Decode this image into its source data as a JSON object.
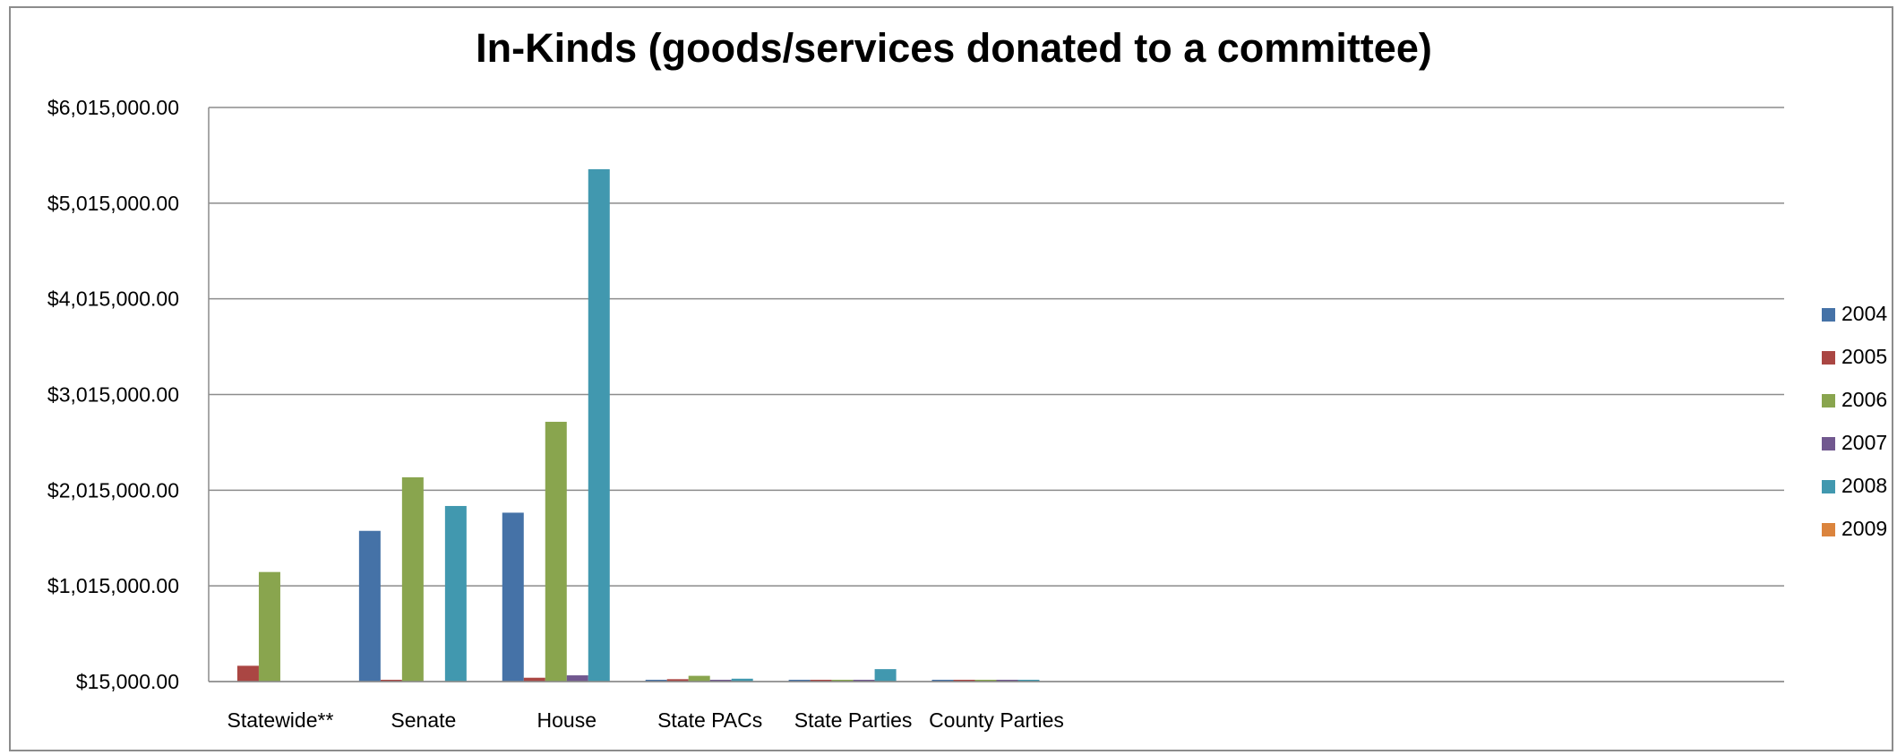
{
  "chart_data": {
    "type": "bar",
    "title": "In-Kinds (goods/services donated to a committee)",
    "xlabel": "",
    "ylabel": "",
    "ylim": [
      15000,
      6015000
    ],
    "yticks": [
      {
        "value": 15000,
        "label": "$15,000.00"
      },
      {
        "value": 1015000,
        "label": "$1,015,000.00"
      },
      {
        "value": 2015000,
        "label": "$2,015,000.00"
      },
      {
        "value": 3015000,
        "label": "$3,015,000.00"
      },
      {
        "value": 4015000,
        "label": "$4,015,000.00"
      },
      {
        "value": 5015000,
        "label": "$5,015,000.00"
      },
      {
        "value": 6015000,
        "label": "$6,015,000.00"
      }
    ],
    "categories": [
      "Statewide**",
      "Senate",
      "House",
      "State PACs",
      "State Parties",
      "County Parties",
      "",
      "",
      "",
      "",
      ""
    ],
    "grid": true,
    "legend_position": "right",
    "series": [
      {
        "name": "2004",
        "color": "#4572A7",
        "values": [
          0,
          1590000,
          1780000,
          5000,
          5000,
          3000,
          0,
          0,
          0,
          0,
          0
        ]
      },
      {
        "name": "2005",
        "color": "#AA4643",
        "values": [
          180000,
          10000,
          55000,
          40000,
          3000,
          2000,
          0,
          0,
          0,
          0,
          0
        ]
      },
      {
        "name": "2006",
        "color": "#89A54E",
        "values": [
          1160000,
          2150000,
          2730000,
          75000,
          5000,
          5000,
          0,
          0,
          0,
          0,
          0
        ]
      },
      {
        "name": "2007",
        "color": "#71588F",
        "values": [
          0,
          0,
          80000,
          25000,
          3000,
          2000,
          0,
          0,
          0,
          0,
          0
        ]
      },
      {
        "name": "2008",
        "color": "#4198AF",
        "values": [
          0,
          1850000,
          5370000,
          45000,
          145000,
          18000,
          0,
          0,
          0,
          0,
          0
        ]
      },
      {
        "name": "2009",
        "color": "#DB843D",
        "values": [
          0,
          0,
          0,
          0,
          0,
          0,
          0,
          0,
          0,
          0,
          0
        ]
      }
    ]
  }
}
